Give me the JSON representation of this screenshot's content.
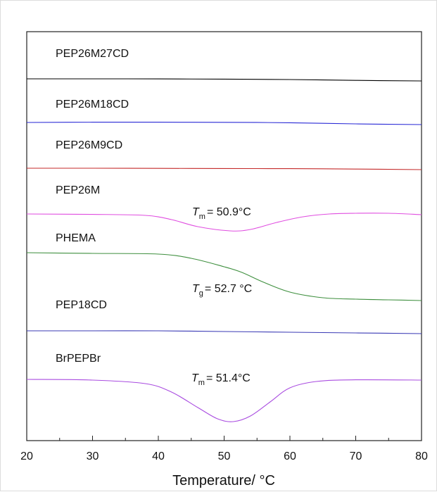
{
  "chart_data": {
    "type": "line",
    "xlabel": "Temperature/ °C",
    "xlim": [
      20,
      80
    ],
    "x_ticks": [
      "20",
      "30",
      "40",
      "50",
      "60",
      "70",
      "80"
    ],
    "grid": false,
    "legend": "none",
    "series": [
      {
        "name": "PEP26M27CD",
        "color": "#000000",
        "x": [
          20,
          30,
          40,
          50,
          60,
          70,
          80
        ],
        "y": [
          0.0,
          0.0,
          -0.05,
          -0.2,
          -0.5,
          -1.1,
          -1.5
        ]
      },
      {
        "name": "PEP26M18CD",
        "color": "#2a2ad6",
        "x": [
          20,
          30,
          40,
          50,
          60,
          70,
          80
        ],
        "y": [
          0.0,
          0.2,
          0.2,
          0.1,
          -0.2,
          -1.0,
          -1.5
        ]
      },
      {
        "name": "PEP26M9CD",
        "color": "#c42a2a",
        "x": [
          20,
          30,
          40,
          50,
          60,
          70,
          80
        ],
        "y": [
          0.0,
          0.0,
          -0.1,
          -0.2,
          -0.3,
          -0.6,
          -1.0
        ]
      },
      {
        "name": "PEP26M",
        "color": "#e04ee0",
        "x": [
          20,
          30,
          38,
          42,
          46,
          50.9,
          54,
          58,
          62,
          66,
          70,
          75,
          80
        ],
        "y": [
          0.0,
          -0.3,
          -1.0,
          -4.0,
          -9.0,
          -12.0,
          -11.0,
          -6.0,
          -2.0,
          0.0,
          0.5,
          0.5,
          -0.5
        ]
      },
      {
        "name": "PHEMA",
        "color": "#3e8f3e",
        "x": [
          20,
          30,
          40,
          45,
          50,
          52.7,
          56,
          60,
          65,
          70,
          75,
          80
        ],
        "y": [
          0.0,
          -0.5,
          -1.0,
          -4.0,
          -10.0,
          -14.0,
          -21.0,
          -28.0,
          -32.0,
          -33.0,
          -33.5,
          -34.0
        ]
      },
      {
        "name": "PEP18CD",
        "color": "#3a3ab5",
        "x": [
          20,
          30,
          40,
          50,
          60,
          70,
          80
        ],
        "y": [
          0.0,
          0.0,
          0.0,
          -0.5,
          -1.0,
          -1.5,
          -2.0
        ]
      },
      {
        "name": "BrPEPBr",
        "color": "#a94ce0",
        "x": [
          20,
          30,
          38,
          42,
          46,
          49,
          51.4,
          54,
          57,
          60,
          64,
          70,
          80
        ],
        "y": [
          0.0,
          -0.5,
          -3.0,
          -9.0,
          -20.0,
          -28.0,
          -30.0,
          -26.0,
          -16.0,
          -6.0,
          -1.5,
          -0.3,
          -0.5
        ]
      }
    ],
    "annotations": [
      {
        "symbol": "T",
        "sub": "m",
        "text": "= 50.9°C",
        "series": "PEP26M"
      },
      {
        "symbol": "T",
        "sub": "g",
        "text": "= 52.7 °C",
        "series": "PHEMA"
      },
      {
        "symbol": "T",
        "sub": "m",
        "text": "= 51.4°C",
        "series": "BrPEPBr"
      }
    ]
  }
}
